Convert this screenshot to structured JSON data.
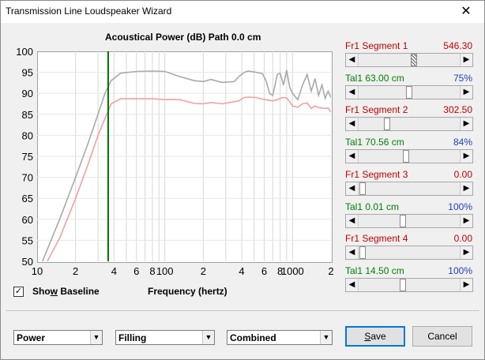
{
  "window": {
    "title": "Transmission Line Loudspeaker Wizard",
    "close_glyph": "✕"
  },
  "chart_title": "Acoustical Power (dB)   Path 0.0 cm",
  "chart_data": {
    "type": "line",
    "title": "Acoustical Power (dB)   Path 0.0 cm",
    "xlabel": "Frequency (hertz)",
    "ylabel": "",
    "x_scale": "log",
    "xlim": [
      10,
      2000
    ],
    "ylim": [
      50,
      100
    ],
    "x_tick_labels": [
      "10",
      "2",
      "4",
      "6",
      "8",
      "100",
      "2",
      "4",
      "6",
      "8",
      "1000",
      "2"
    ],
    "y_tick_labels": [
      "100",
      "95",
      "90",
      "85",
      "80",
      "75",
      "70",
      "65",
      "60",
      "55",
      "50"
    ],
    "marker_line_x": 36,
    "marker_line_color": "#007000",
    "grid": true,
    "series": [
      {
        "color": "#a9a9a9",
        "x": [
          11,
          15,
          20,
          25,
          30,
          34,
          38,
          45,
          60,
          80,
          100,
          130,
          170,
          200,
          230,
          280,
          350,
          380,
          420,
          450,
          520,
          580,
          620,
          660,
          700,
          760,
          800,
          850,
          900,
          950,
          1000,
          1100,
          1200,
          1300,
          1400,
          1500,
          1600,
          1700,
          1800,
          1900,
          2000
        ],
        "y": [
          50,
          60,
          70,
          78,
          85,
          90,
          93,
          94.8,
          95.2,
          95.3,
          95.2,
          94,
          93,
          92.8,
          93.3,
          92.6,
          92.8,
          94,
          95,
          95.3,
          95,
          94.7,
          93,
          90,
          89.5,
          94.5,
          94.8,
          92,
          95.5,
          91.5,
          90,
          88.5,
          92,
          94.5,
          90.5,
          93.5,
          89.5,
          92,
          88.8,
          90.5,
          89
        ]
      },
      {
        "color": "#f0a0a0",
        "x": [
          12,
          15,
          20,
          25,
          30,
          34,
          38,
          45,
          60,
          80,
          100,
          130,
          170,
          200,
          230,
          280,
          350,
          380,
          420,
          450,
          520,
          580,
          640,
          700,
          760,
          800,
          850,
          900,
          950,
          1000,
          1100,
          1200,
          1300,
          1400,
          1500,
          1600,
          1700,
          1800,
          1900,
          2000
        ],
        "y": [
          50,
          55.5,
          65,
          73,
          80,
          84,
          87.5,
          88.7,
          88.7,
          88.7,
          88.5,
          88.5,
          87.6,
          87.5,
          87.8,
          87.5,
          88,
          88.2,
          89,
          89.1,
          89,
          88.6,
          88.4,
          88.2,
          88.5,
          88.8,
          89,
          88.9,
          88,
          87,
          86.7,
          87.5,
          87.7,
          86.4,
          87,
          86.6,
          86.5,
          86.4,
          86.5,
          85.5
        ]
      }
    ]
  },
  "show_baseline": {
    "checked_glyph": "✓",
    "label_pre": "Sho",
    "label_ul": "w",
    "label_post": " Baseline"
  },
  "xaxis_label": "Frequency (hertz)",
  "sidebar": [
    {
      "label": "Fr1  Segment 1",
      "value": "546.30",
      "kind": "segment",
      "thumb": 0.55,
      "hatched": true
    },
    {
      "label": "Tal1  63.00 cm",
      "value": "75%",
      "kind": "tal",
      "thumb": 0.5
    },
    {
      "label": "Fr1  Segment 2",
      "value": "302.50",
      "kind": "segment",
      "thumb": 0.26
    },
    {
      "label": "Tal1  70.56 cm",
      "value": "84%",
      "kind": "tal",
      "thumb": 0.47
    },
    {
      "label": "Fr1  Segment 3",
      "value": "0.00",
      "kind": "segment",
      "thumb": 0.0
    },
    {
      "label": "Tal1  0.01 cm",
      "value": "100%",
      "kind": "tal",
      "thumb": 0.43
    },
    {
      "label": "Fr1  Segment 4",
      "value": "0.00",
      "kind": "segment",
      "thumb": 0.0
    },
    {
      "label": "Tal1  14.50 cm",
      "value": "100%",
      "kind": "tal",
      "thumb": 0.43
    }
  ],
  "scroll_arrows": {
    "left": "◀",
    "right": "▶"
  },
  "combos": [
    {
      "value": "Power",
      "arrow": "▼"
    },
    {
      "value": "Filling",
      "arrow": "▼"
    },
    {
      "value": "Combined",
      "arrow": "▼"
    }
  ],
  "buttons": {
    "save_ul": "S",
    "save_rest": "ave",
    "cancel": "Cancel"
  }
}
